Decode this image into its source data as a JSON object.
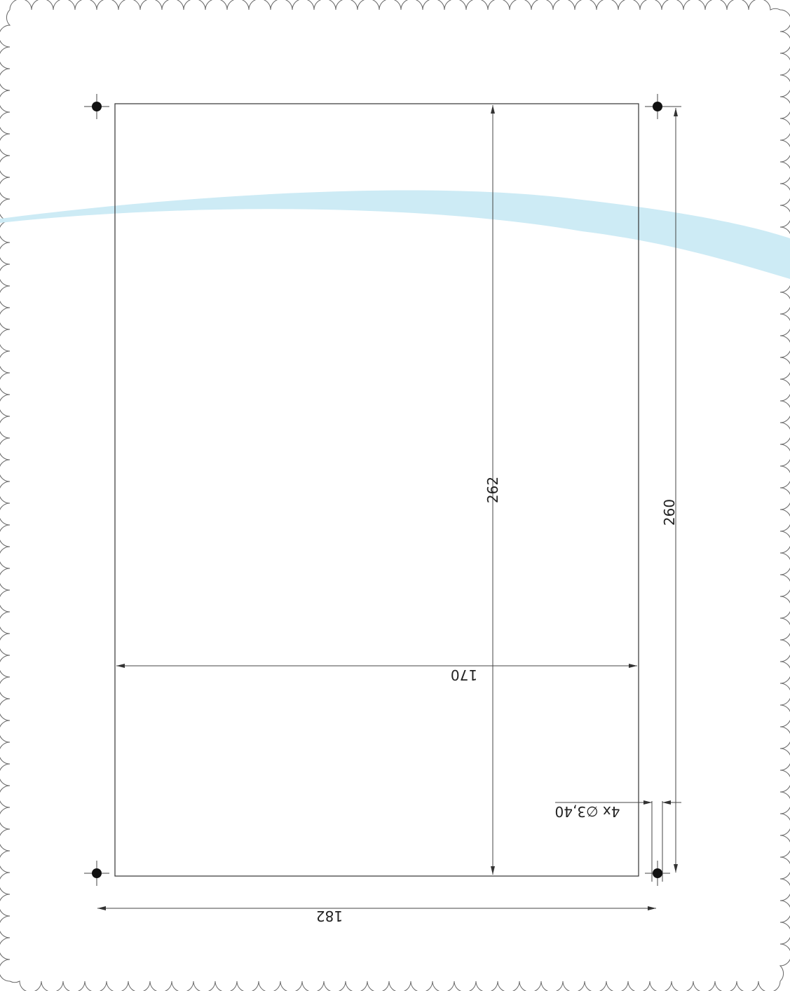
{
  "drawing": {
    "dimensions": {
      "height_inner": "262",
      "height_outer": "260",
      "width_inner": "170",
      "width_outer": "182",
      "holes": "4x ∅3,40"
    },
    "colors": {
      "accent_band": "#cdebf5",
      "lines": "#333333",
      "hole_marker": "#111111",
      "border": "#666666"
    },
    "icons": [
      "mounting-hole-icon"
    ]
  }
}
